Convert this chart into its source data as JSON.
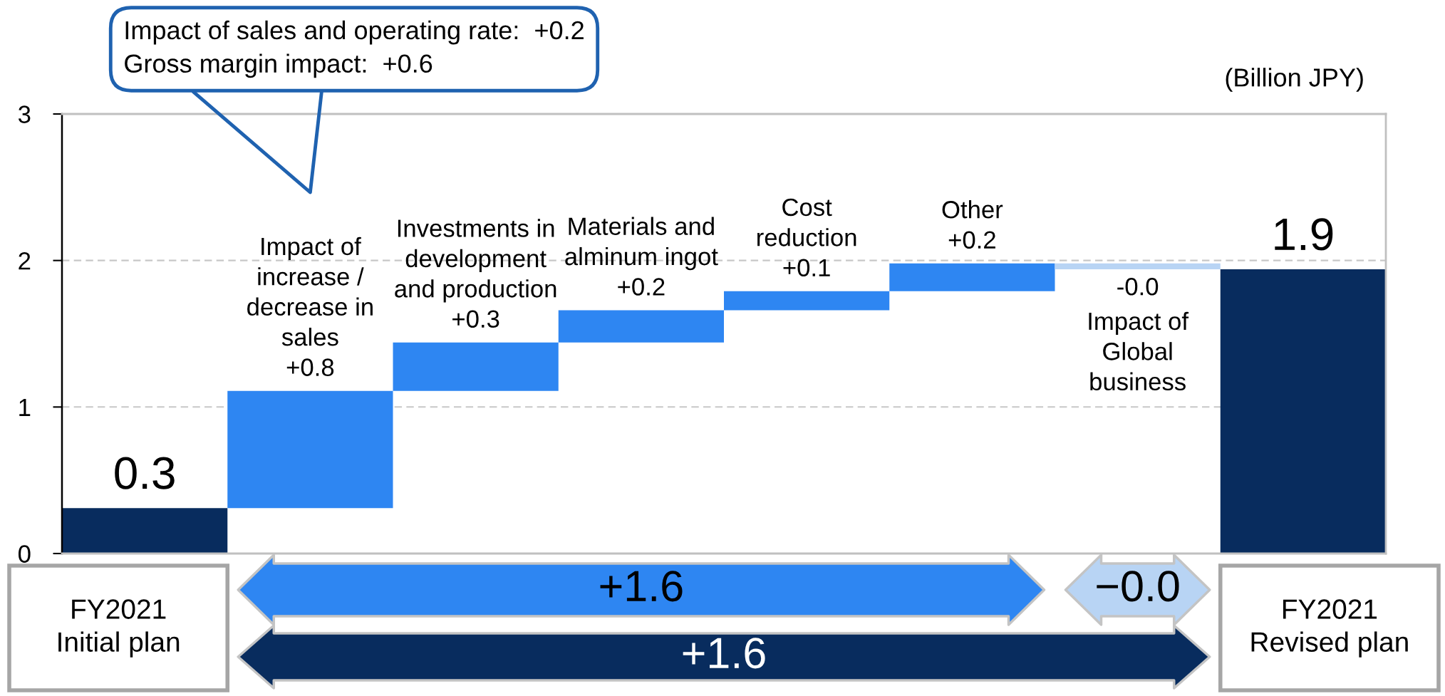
{
  "chart_data": {
    "type": "bar",
    "categories": [
      "FY2021\nInitial plan",
      "Impact of\nincrease /\ndecrease in\nsales",
      "Investments in\ndevelopment\nand production",
      "Materials and\nalminum ingot",
      "Cost\nreduction",
      "Other",
      "Impact of\nGlobal\nbusiness",
      "FY2021\nRevised plan"
    ],
    "base": [
      0,
      0.31,
      1.11,
      1.44,
      1.66,
      1.79,
      1.98,
      0
    ],
    "values": [
      0.31,
      0.8,
      0.33,
      0.22,
      0.13,
      0.19,
      -0.04,
      1.94
    ],
    "colors": [
      "#082c5e",
      "#2e86f2",
      "#2e86f2",
      "#2e86f2",
      "#2e86f2",
      "#2e86f2",
      "#b8d4f4",
      "#082c5e"
    ],
    "value_labels": [
      "0.3",
      "+0.8",
      "+0.3",
      "+0.2",
      "+0.1",
      "+0.2",
      "-0.0",
      "1.9"
    ],
    "ylim": [
      0,
      3
    ],
    "yticks": [
      0,
      1,
      2,
      3
    ],
    "grid": "y",
    "annotations": [
      "Impact of sales and operating rate:  +0.2\nGross margin impact:  +0.6",
      "(Billion JPY)",
      "+1.6",
      "−0.0",
      "+1.6"
    ]
  }
}
